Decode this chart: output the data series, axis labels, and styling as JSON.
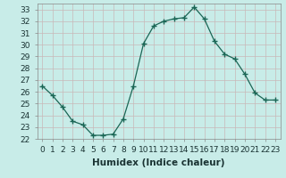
{
  "x": [
    0,
    1,
    2,
    3,
    4,
    5,
    6,
    7,
    8,
    9,
    10,
    11,
    12,
    13,
    14,
    15,
    16,
    17,
    18,
    19,
    20,
    21,
    22,
    23
  ],
  "y": [
    26.5,
    25.7,
    24.7,
    23.5,
    23.2,
    22.3,
    22.3,
    22.4,
    23.7,
    26.5,
    30.1,
    31.6,
    32.0,
    32.2,
    32.3,
    33.2,
    32.2,
    30.3,
    29.2,
    28.8,
    27.5,
    25.9,
    25.3,
    25.3
  ],
  "bg_color": "#c8ece8",
  "grid_color": "#b0d8d4",
  "line_color": "#1a6655",
  "marker_color": "#1a6655",
  "xlabel": "Humidex (Indice chaleur)",
  "ylim": [
    22,
    33.5
  ],
  "xlim": [
    -0.5,
    23.5
  ],
  "yticks": [
    22,
    23,
    24,
    25,
    26,
    27,
    28,
    29,
    30,
    31,
    32,
    33
  ],
  "xticks": [
    0,
    1,
    2,
    3,
    4,
    5,
    6,
    7,
    8,
    9,
    10,
    11,
    12,
    13,
    14,
    15,
    16,
    17,
    18,
    19,
    20,
    21,
    22,
    23
  ],
  "xtick_labels": [
    "0",
    "1",
    "2",
    "3",
    "4",
    "5",
    "6",
    "7",
    "8",
    "9",
    "10",
    "11",
    "12",
    "13",
    "14",
    "15",
    "16",
    "17",
    "18",
    "19",
    "20",
    "21",
    "22",
    "23"
  ],
  "xlabel_fontsize": 7.5,
  "tick_fontsize": 6.5
}
